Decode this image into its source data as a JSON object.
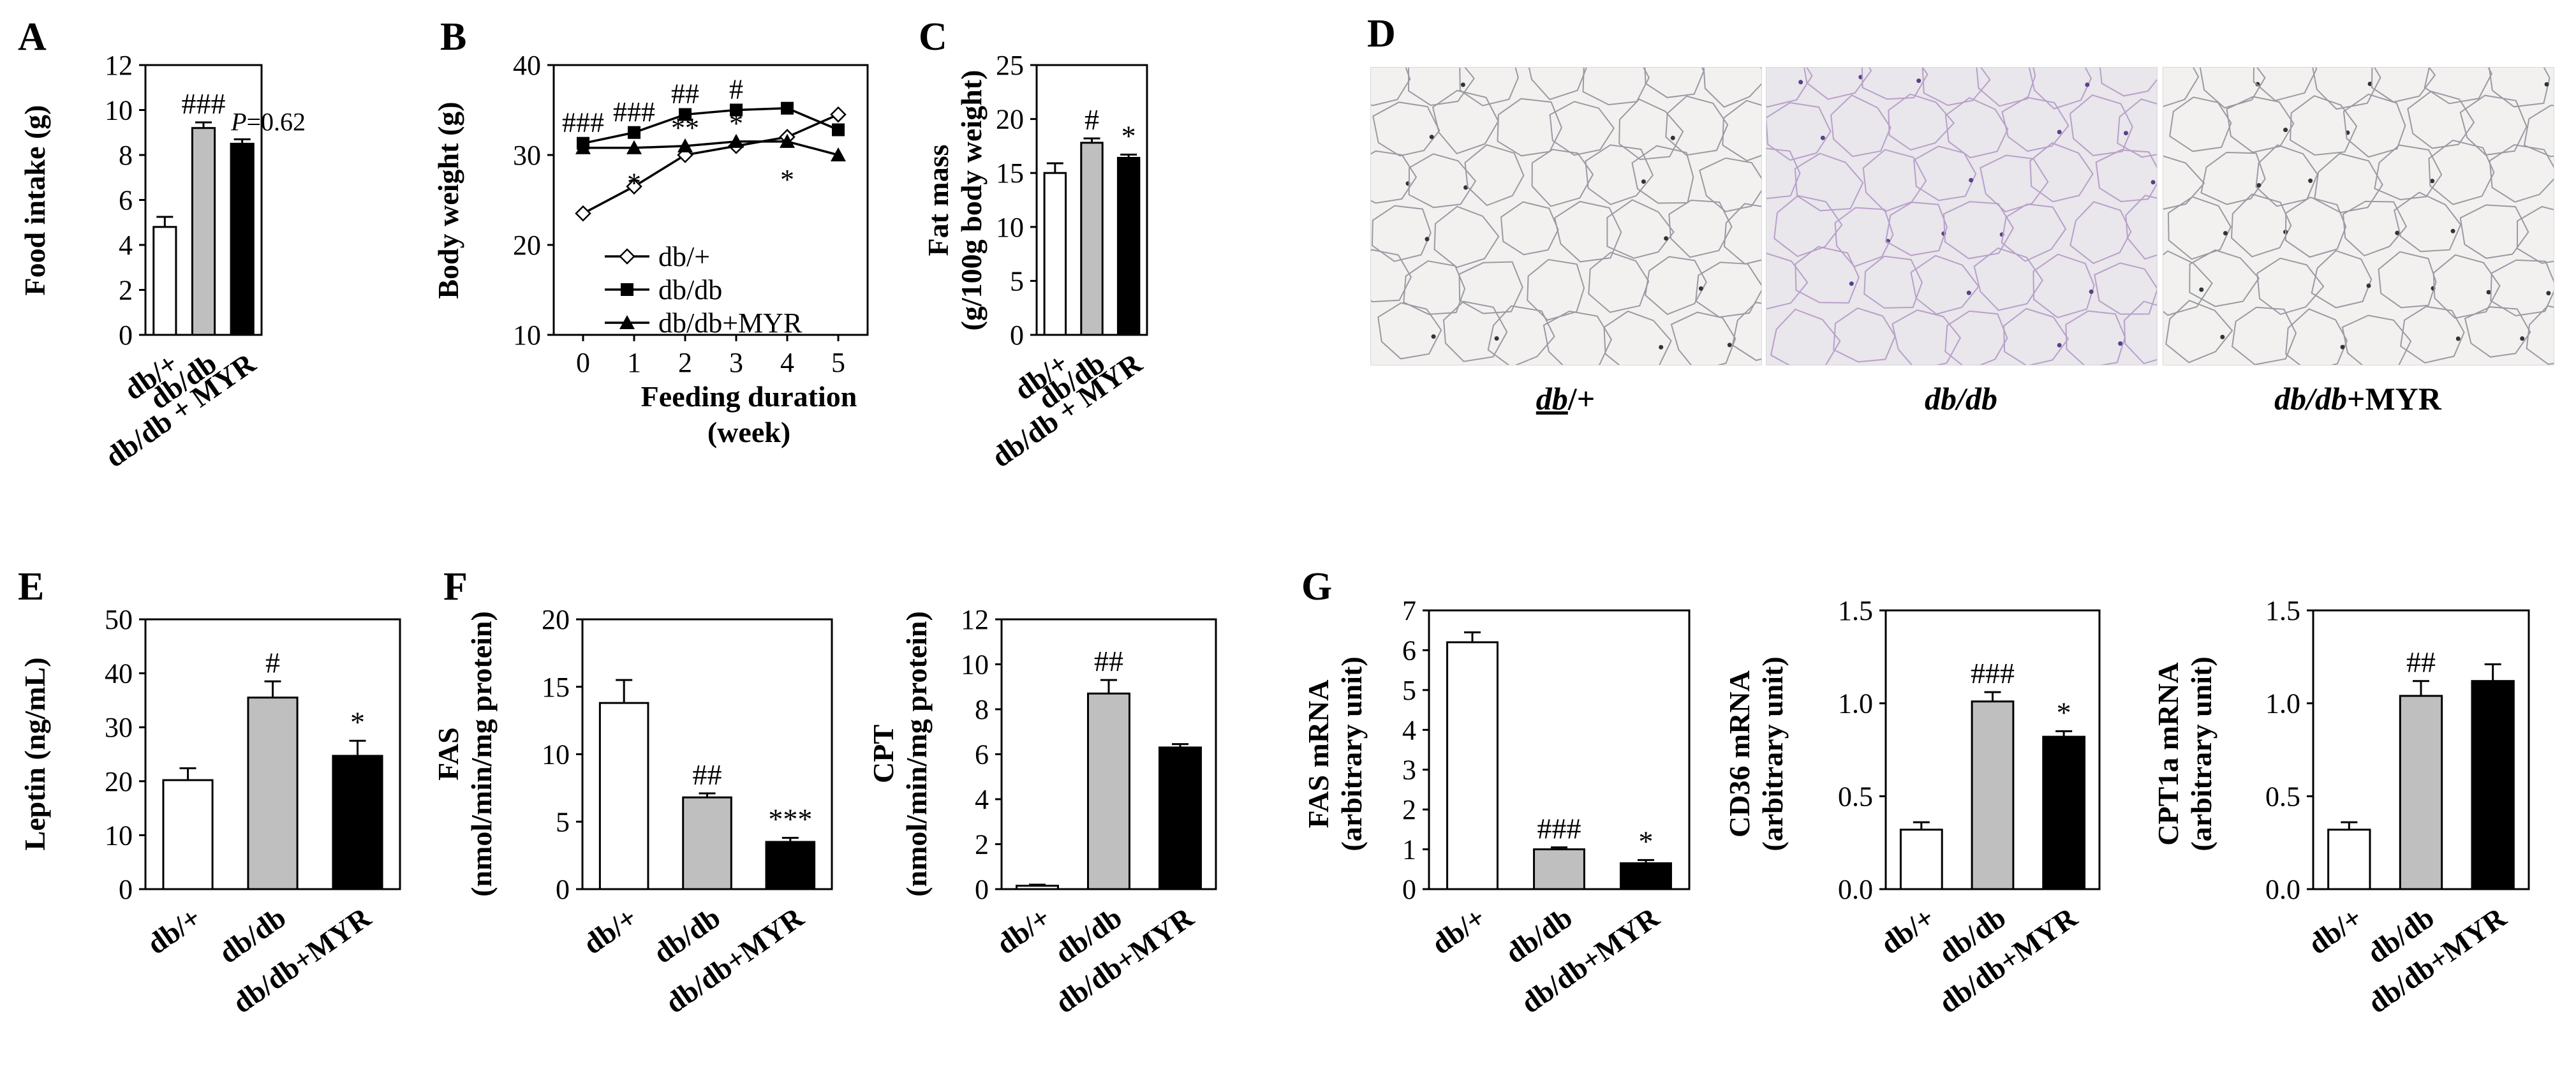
{
  "chart_data": [
    {
      "id": "A",
      "type": "bar",
      "panel_label": "A",
      "ylabel": "Food intake (g)",
      "ylim": [
        0,
        12
      ],
      "yticks": [
        "0",
        "2",
        "4",
        "6",
        "8",
        "10",
        "12"
      ],
      "categories": [
        "db/+",
        "db/db",
        "db/db + MYR"
      ],
      "values": [
        4.8,
        9.2,
        8.5
      ],
      "errors": [
        0.45,
        0.25,
        0.2
      ],
      "annotations": [
        "",
        "###",
        "P=0.62"
      ],
      "colors": [
        "#ffffff",
        "#bfbfbf",
        "#000000"
      ]
    },
    {
      "id": "B",
      "type": "line",
      "panel_label": "B",
      "ylabel": "Body weight (g)",
      "xlabel": "Feeding duration",
      "xlabel2": "(week)",
      "ylim": [
        10,
        40
      ],
      "yticks": [
        "10",
        "20",
        "30",
        "40"
      ],
      "x": [
        0,
        1,
        2,
        3,
        4,
        5
      ],
      "xticks": [
        "0",
        "1",
        "2",
        "3",
        "4",
        "5"
      ],
      "series": [
        {
          "name": "db/+",
          "marker": "diamond-open",
          "values": [
            23.5,
            26.5,
            30.0,
            31.0,
            32.0,
            34.5
          ]
        },
        {
          "name": "db/db",
          "marker": "square",
          "values": [
            31.3,
            32.5,
            34.5,
            35.0,
            35.2,
            32.8
          ]
        },
        {
          "name": "db/db+MYR",
          "marker": "triangle",
          "values": [
            30.8,
            30.8,
            31.0,
            31.5,
            31.5,
            30.0
          ]
        }
      ],
      "annotations": [
        {
          "text": "###",
          "x": 0
        },
        {
          "text": "###",
          "x": 1
        },
        {
          "text": "##",
          "x": 2
        },
        {
          "text": "#",
          "x": 3
        },
        {
          "text": "*",
          "x": 1
        },
        {
          "text": "**",
          "x": 2
        },
        {
          "text": "*",
          "x": 3
        },
        {
          "text": "*",
          "x": 4
        }
      ]
    },
    {
      "id": "C",
      "type": "bar",
      "panel_label": "C",
      "ylabel": "Fat mass",
      "ylabel2": "(g/100g body weight)",
      "ylim": [
        0,
        25
      ],
      "yticks": [
        "0",
        "5",
        "10",
        "15",
        "20",
        "25"
      ],
      "categories": [
        "db/+",
        "db/db",
        "db/db + MYR"
      ],
      "values": [
        15.0,
        17.8,
        16.4
      ],
      "errors": [
        0.9,
        0.4,
        0.3
      ],
      "annotations": [
        "",
        "#",
        "*"
      ],
      "colors": [
        "#ffffff",
        "#bfbfbf",
        "#000000"
      ]
    },
    {
      "id": "E",
      "type": "bar",
      "panel_label": "E",
      "ylabel": "Leptin (ng/mL)",
      "ylim": [
        0,
        50
      ],
      "yticks": [
        "0",
        "10",
        "20",
        "30",
        "40",
        "50"
      ],
      "categories": [
        "db/+",
        "db/db",
        "db/db+MYR"
      ],
      "values": [
        20.2,
        35.5,
        24.7
      ],
      "errors": [
        2.2,
        3.0,
        2.8
      ],
      "annotations": [
        "",
        "#",
        "*"
      ],
      "colors": [
        "#ffffff",
        "#bfbfbf",
        "#000000"
      ]
    },
    {
      "id": "F1",
      "type": "bar",
      "panel_label": "F",
      "ylabel": "FAS",
      "ylabel2": "(nmol/min/mg protein)",
      "ylim": [
        0,
        20
      ],
      "yticks": [
        "0",
        "5",
        "10",
        "15",
        "20"
      ],
      "categories": [
        "db/+",
        "db/db",
        "db/db+MYR"
      ],
      "values": [
        13.8,
        6.8,
        3.5
      ],
      "errors": [
        1.7,
        0.3,
        0.3
      ],
      "annotations": [
        "",
        "##",
        "***"
      ],
      "colors": [
        "#ffffff",
        "#bfbfbf",
        "#000000"
      ]
    },
    {
      "id": "F2",
      "type": "bar",
      "panel_label": "",
      "ylabel": "CPT",
      "ylabel2": "(nmol/min/mg protein)",
      "ylim": [
        0,
        12
      ],
      "yticks": [
        "0",
        "2",
        "4",
        "6",
        "8",
        "10",
        "12"
      ],
      "categories": [
        "db/+",
        "db/db",
        "db/db+MYR"
      ],
      "values": [
        0.15,
        8.7,
        6.3
      ],
      "errors": [
        0.05,
        0.6,
        0.15
      ],
      "annotations": [
        "",
        "##",
        ""
      ],
      "colors": [
        "#ffffff",
        "#bfbfbf",
        "#000000"
      ]
    },
    {
      "id": "G1",
      "type": "bar",
      "panel_label": "G",
      "ylabel": "FAS mRNA",
      "ylabel2": "(arbitrary unit)",
      "ylim": [
        0,
        7
      ],
      "yticks": [
        "0",
        "1",
        "2",
        "3",
        "4",
        "5",
        "6",
        "7"
      ],
      "categories": [
        "db/+",
        "db/db",
        "db/db+MYR"
      ],
      "values": [
        6.2,
        1.0,
        0.65
      ],
      "errors": [
        0.25,
        0.05,
        0.08
      ],
      "annotations": [
        "",
        "###",
        "*"
      ],
      "colors": [
        "#ffffff",
        "#bfbfbf",
        "#000000"
      ]
    },
    {
      "id": "G2",
      "type": "bar",
      "panel_label": "",
      "ylabel": "CD36 mRNA",
      "ylabel2": "(arbitrary unit)",
      "ylim": [
        0,
        1.5
      ],
      "yticks": [
        "0.0",
        "0.5",
        "1.0",
        "1.5"
      ],
      "categories": [
        "db/+",
        "db/db",
        "db/db+MYR"
      ],
      "values": [
        0.32,
        1.01,
        0.82
      ],
      "errors": [
        0.04,
        0.05,
        0.03
      ],
      "annotations": [
        "",
        "###",
        "*"
      ],
      "colors": [
        "#ffffff",
        "#bfbfbf",
        "#000000"
      ]
    },
    {
      "id": "G3",
      "type": "bar",
      "panel_label": "",
      "ylabel": "CPT1a mRNA",
      "ylabel2": "(arbitrary unit)",
      "ylim": [
        0,
        1.5
      ],
      "yticks": [
        "0.0",
        "0.5",
        "1.0",
        "1.5"
      ],
      "categories": [
        "db/+",
        "db/db",
        "db/db+MYR"
      ],
      "values": [
        0.32,
        1.04,
        1.12
      ],
      "errors": [
        0.04,
        0.08,
        0.09
      ],
      "annotations": [
        "",
        "##",
        ""
      ],
      "colors": [
        "#ffffff",
        "#bfbfbf",
        "#000000"
      ]
    }
  ],
  "histology": {
    "panel_label": "D",
    "captions": [
      {
        "group": "db",
        "suffix": "/+"
      },
      {
        "group": "db/db",
        "suffix": ""
      },
      {
        "group": "db/db",
        "suffix": "+MYR"
      }
    ]
  }
}
